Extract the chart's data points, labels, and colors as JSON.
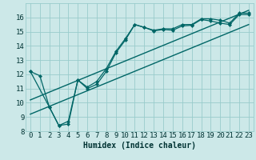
{
  "xlabel": "Humidex (Indice chaleur)",
  "bg_color": "#cce8e8",
  "grid_color": "#99cccc",
  "line_color": "#006666",
  "xlim": [
    -0.5,
    23.5
  ],
  "ylim": [
    8,
    17
  ],
  "yticks": [
    8,
    9,
    10,
    11,
    12,
    13,
    14,
    15,
    16
  ],
  "xticks": [
    0,
    1,
    2,
    3,
    4,
    5,
    6,
    7,
    8,
    9,
    10,
    11,
    12,
    13,
    14,
    15,
    16,
    17,
    18,
    19,
    20,
    21,
    22,
    23
  ],
  "line1_x": [
    0,
    1,
    2,
    3,
    4,
    5,
    6,
    7,
    8,
    9,
    10,
    11,
    12,
    13,
    14,
    15,
    16,
    17,
    18,
    19,
    20,
    21,
    22,
    23
  ],
  "line1_y": [
    12.2,
    11.9,
    9.7,
    8.4,
    8.5,
    11.6,
    11.1,
    11.5,
    12.4,
    13.6,
    14.5,
    15.5,
    15.3,
    15.1,
    15.2,
    15.2,
    15.5,
    15.5,
    15.9,
    15.9,
    15.8,
    15.6,
    16.3,
    16.3
  ],
  "line2_x": [
    0,
    2,
    3,
    4,
    5,
    6,
    7,
    8,
    9,
    10,
    11,
    12,
    13,
    14,
    15,
    16,
    17,
    18,
    19,
    20,
    21,
    22,
    23
  ],
  "line2_y": [
    12.2,
    9.7,
    8.4,
    8.7,
    11.6,
    11.0,
    11.3,
    12.2,
    13.5,
    14.4,
    15.5,
    15.3,
    15.05,
    15.15,
    15.1,
    15.4,
    15.45,
    15.85,
    15.75,
    15.6,
    15.5,
    16.2,
    16.2
  ],
  "ref_line1_x": [
    0,
    23
  ],
  "ref_line1_y": [
    10.2,
    16.5
  ],
  "ref_line2_x": [
    0,
    23
  ],
  "ref_line2_y": [
    9.2,
    15.5
  ],
  "xlabel_fontsize": 7,
  "tick_fontsize": 6.5
}
